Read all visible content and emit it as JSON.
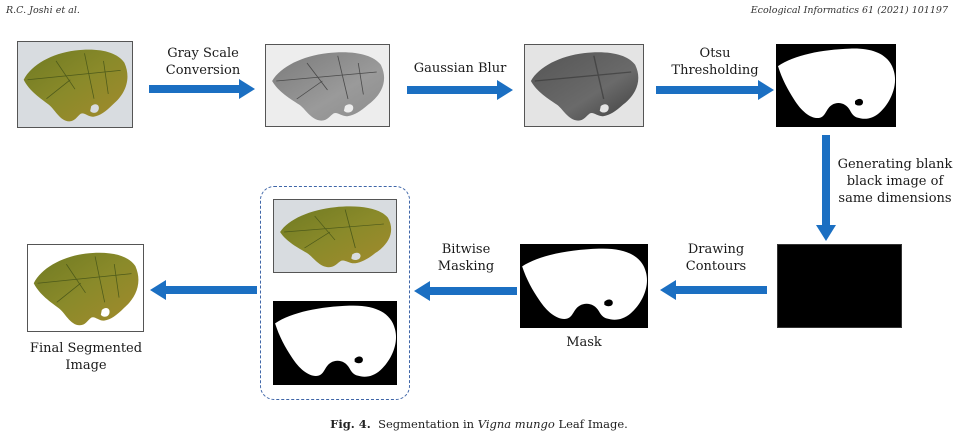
{
  "header": {
    "left": "R.C. Joshi et al.",
    "right": "Ecological Informatics 61 (2021) 101197"
  },
  "steps": {
    "gray_scale": [
      "Gray Scale",
      "Conversion"
    ],
    "gaussian_blur": "Gaussian Blur",
    "otsu": [
      "Otsu",
      "Thresholding"
    ],
    "blank": [
      "Generating blank",
      "black image of",
      "same dimensions"
    ],
    "drawing": [
      "Drawing",
      "Contours"
    ],
    "bitwise": [
      "Bitwise",
      "Masking"
    ]
  },
  "images": {
    "mask_label": "Mask",
    "final_label": [
      "Final Segmented",
      "Image"
    ]
  },
  "caption": {
    "fig": "Fig. 4.",
    "before": "Segmentation in ",
    "species": "Vigna mungo",
    "after": " Leaf Image."
  },
  "colors": {
    "arrow": "#1b6fc2",
    "dashed_border": "#3f66a8",
    "leaf": "#7a7f2a",
    "background_gray": "#d8dce0"
  }
}
